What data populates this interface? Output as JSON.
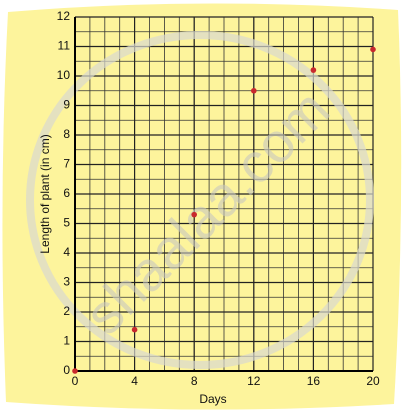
{
  "chart_data": {
    "type": "scatter",
    "x_label": "Days",
    "y_label": "Length of plant (in cm)",
    "watermark": "shaalaa.com",
    "x": [
      0,
      4,
      8,
      12,
      16,
      20
    ],
    "values": [
      0,
      1.4,
      5.3,
      9.5,
      10.2,
      10.9
    ],
    "color": "#c8282d",
    "xlim": [
      0,
      20
    ],
    "ylim": [
      0,
      12
    ],
    "xticks": [
      0,
      4,
      8,
      12,
      16,
      20
    ],
    "yticks": [
      0,
      1,
      2,
      3,
      4,
      5,
      6,
      7,
      8,
      9,
      10,
      11,
      12
    ],
    "grid": true
  }
}
